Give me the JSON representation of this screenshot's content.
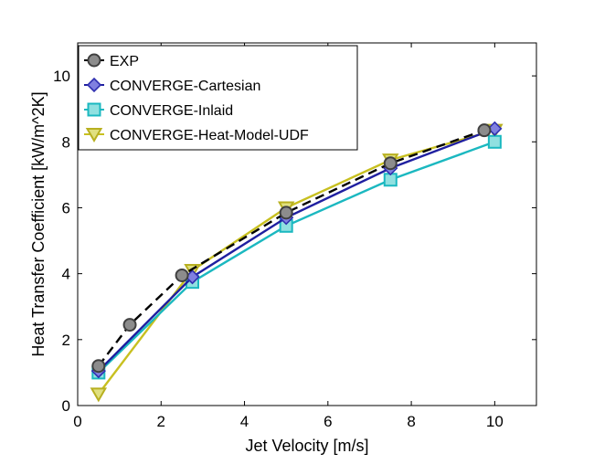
{
  "chart_data": {
    "type": "line",
    "title": "",
    "xlabel": "Jet Velocity [m/s]",
    "ylabel": "Heat Transfer Coefficient [kW/m^2K]",
    "xlim": [
      0,
      11
    ],
    "ylim": [
      0,
      11
    ],
    "xticks": [
      0,
      2,
      4,
      6,
      8,
      10
    ],
    "yticks": [
      0,
      2,
      4,
      6,
      8,
      10
    ],
    "grid": false,
    "legend_position": "top-left",
    "series": [
      {
        "name": "EXP",
        "x": [
          0.5,
          1.25,
          2.5,
          5.0,
          7.5,
          9.75
        ],
        "y": [
          1.2,
          2.45,
          3.95,
          5.85,
          7.35,
          8.35
        ],
        "line_color": "#000000",
        "line_style": "dashed",
        "marker": "circle",
        "marker_fill": "#8c8c8c",
        "marker_edge": "#404040"
      },
      {
        "name": "CONVERGE-Cartesian",
        "x": [
          0.5,
          2.75,
          5.0,
          7.5,
          10.0
        ],
        "y": [
          1.05,
          3.9,
          5.7,
          7.2,
          8.4
        ],
        "line_color": "#1f1fa0",
        "line_style": "solid",
        "marker": "diamond",
        "marker_fill": "#8080e0",
        "marker_edge": "#3030b0"
      },
      {
        "name": "CONVERGE-Inlaid",
        "x": [
          0.5,
          2.75,
          5.0,
          7.5,
          10.0
        ],
        "y": [
          1.0,
          3.75,
          5.45,
          6.85,
          8.0
        ],
        "line_color": "#1bb8c0",
        "line_style": "solid",
        "marker": "square",
        "marker_fill": "#90e0e0",
        "marker_edge": "#1bb8c0"
      },
      {
        "name": "CONVERGE-Heat-Model-UDF",
        "x": [
          0.5,
          2.75,
          5.0,
          7.5,
          10.0
        ],
        "y": [
          0.35,
          4.1,
          6.0,
          7.45,
          8.35
        ],
        "line_color": "#c8c020",
        "line_style": "solid",
        "marker": "triangle-down",
        "marker_fill": "#e0e080",
        "marker_edge": "#b8b020"
      }
    ]
  }
}
